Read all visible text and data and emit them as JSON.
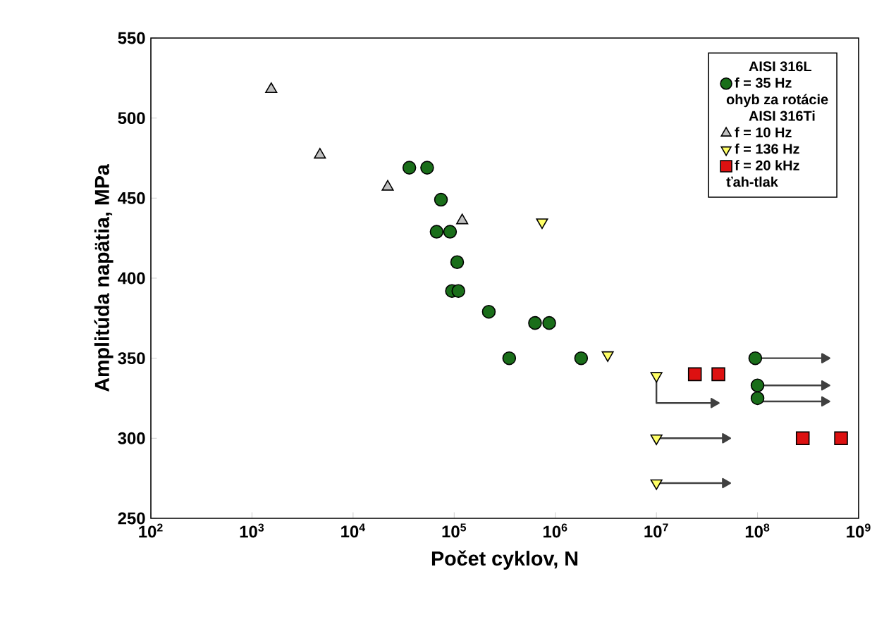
{
  "chart_data": {
    "type": "scatter",
    "xlabel": "Počet cyklov, N",
    "ylabel": "Amplitúda napätia, MPa",
    "log": "x",
    "grid": false,
    "legend": "top right",
    "xlim": [
      100,
      1000000000
    ],
    "ylim": [
      250,
      550
    ],
    "xticks": [
      {
        "value": 100,
        "label": "10$^{2}$"
      },
      {
        "value": 1000,
        "label": "10$^{3}$"
      },
      {
        "value": 10000,
        "label": "10$^{4}$"
      },
      {
        "value": 100000,
        "label": "10$^{5}$"
      },
      {
        "value": 1000000,
        "label": "10$^{6}$"
      },
      {
        "value": 10000000,
        "label": "10$^{7}$"
      },
      {
        "value": 100000000,
        "label": "10$^{8}$"
      },
      {
        "value": 1000000000,
        "label": "10$^{9}$"
      }
    ],
    "yticks": [
      250,
      300,
      350,
      400,
      450,
      500,
      550
    ],
    "annotations": [
      "AISI 316L",
      "ohyb za rotácie",
      "AISI 316Ti",
      "ťah-tlak"
    ],
    "series": [
      {
        "name": "f = 35 Hz",
        "color": "#1a6e1a",
        "marker": "circle",
        "x": [
          36000,
          54000,
          74000,
          67000,
          91000,
          107000,
          95000,
          110000,
          220000,
          350000,
          630000,
          870000,
          1800000,
          95000000,
          100000000,
          100000000
        ],
        "values": [
          469,
          469,
          449,
          429,
          429,
          410,
          392,
          392,
          379,
          350,
          372,
          372,
          350,
          350,
          333,
          325
        ]
      },
      {
        "name": "f = 10 Hz",
        "color": "#c0c0c0",
        "marker": "triangle",
        "x": [
          1550,
          4700,
          22000,
          120000
        ],
        "values": [
          518,
          477,
          457,
          436
        ]
      },
      {
        "name": "f = 136 Hz",
        "color": "#ffff66",
        "marker": "triangle_down",
        "x": [
          740000,
          3300000,
          10000000,
          10000000,
          10000000
        ],
        "values": [
          435,
          352,
          339,
          300,
          272
        ]
      },
      {
        "name": "f = 20 kHz",
        "color": "#dd1111",
        "marker": "square",
        "x": [
          24000000,
          41000000,
          280000000,
          670000000
        ],
        "values": [
          340,
          340,
          300,
          300
        ]
      },
      {
        "type": "line",
        "color": "#404040",
        "x": [
          10000000,
          10000000,
          37000000
        ],
        "values": [
          339,
          322,
          322
        ]
      },
      {
        "type": "line",
        "color": "#404040",
        "x": [
          10000000,
          48000000
        ],
        "values": [
          300,
          300
        ]
      },
      {
        "type": "line",
        "color": "#404040",
        "x": [
          10000000,
          48000000
        ],
        "values": [
          272,
          272
        ]
      },
      {
        "type": "line",
        "color": "#404040",
        "x": [
          100000000,
          460000000
        ],
        "values": [
          350,
          350
        ]
      },
      {
        "type": "line",
        "color": "#404040",
        "x": [
          100000000,
          460000000
        ],
        "values": [
          333,
          333
        ]
      },
      {
        "type": "line",
        "color": "#404040",
        "x": [
          100000000,
          460000000
        ],
        "values": [
          323,
          323
        ]
      }
    ]
  }
}
